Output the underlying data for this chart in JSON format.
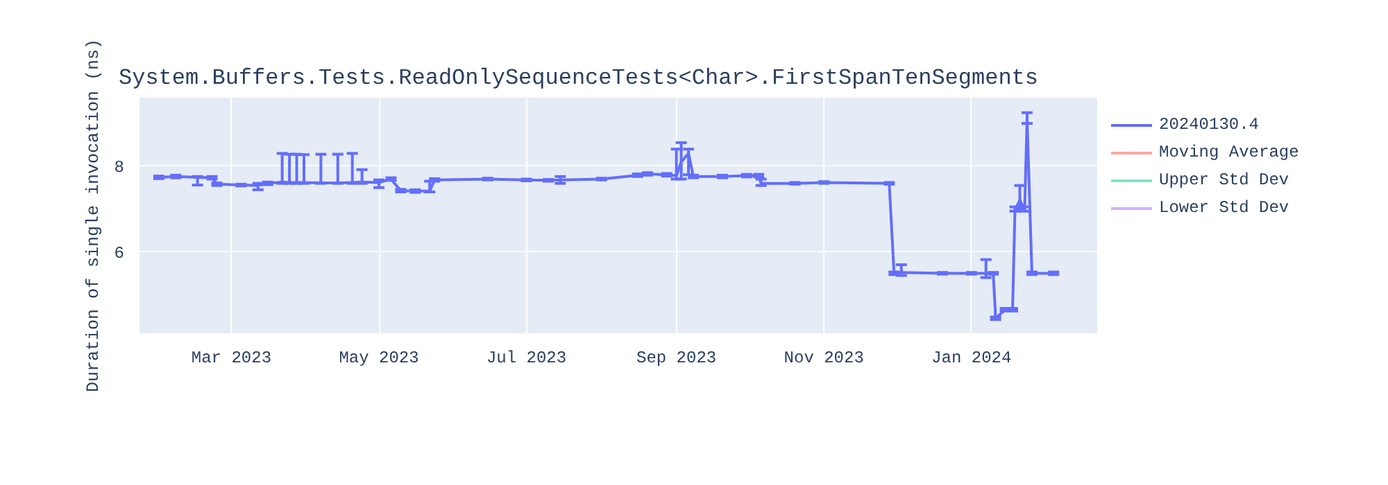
{
  "chart_data": {
    "type": "line",
    "title": "System.Buffers.Tests.ReadOnlySequenceTests<Char>.FirstSpanTenSegments",
    "ylabel": "Duration of single invocation (ns)",
    "x": [
      "2023-01-30",
      "2023-02-06",
      "2023-02-15",
      "2023-02-21",
      "2023-02-23",
      "2023-03-05",
      "2023-03-12",
      "2023-03-16",
      "2023-03-22",
      "2023-03-25",
      "2023-03-28",
      "2023-03-31",
      "2023-04-07",
      "2023-04-14",
      "2023-04-20",
      "2023-04-24",
      "2023-05-01",
      "2023-05-06",
      "2023-05-10",
      "2023-05-16",
      "2023-05-22",
      "2023-05-24",
      "2023-06-15",
      "2023-07-01",
      "2023-07-10",
      "2023-07-15",
      "2023-08-01",
      "2023-08-16",
      "2023-08-20",
      "2023-08-28",
      "2023-09-01",
      "2023-09-03",
      "2023-09-06",
      "2023-09-08",
      "2023-09-20",
      "2023-09-30",
      "2023-10-05",
      "2023-10-06",
      "2023-10-20",
      "2023-11-01",
      "2023-11-28",
      "2023-11-30",
      "2023-12-03",
      "2023-12-20",
      "2024-01-01",
      "2024-01-07",
      "2024-01-10",
      "2024-01-11",
      "2024-01-15",
      "2024-01-18",
      "2024-01-19",
      "2024-01-21",
      "2024-01-23",
      "2024-01-24",
      "2024-01-26",
      "2024-02-04"
    ],
    "series": [
      {
        "name": "20240130.4",
        "color": "#636efa",
        "values": [
          7.74,
          7.76,
          7.74,
          7.73,
          7.58,
          7.56,
          7.55,
          7.6,
          7.63,
          7.62,
          7.62,
          7.62,
          7.61,
          7.61,
          7.62,
          7.63,
          7.62,
          7.7,
          7.43,
          7.42,
          7.42,
          7.68,
          7.7,
          7.68,
          7.67,
          7.68,
          7.7,
          7.79,
          7.82,
          7.8,
          7.78,
          8.1,
          8.3,
          7.76,
          7.76,
          7.78,
          7.78,
          7.6,
          7.6,
          7.62,
          7.6,
          5.5,
          5.52,
          5.5,
          5.5,
          5.5,
          5.5,
          4.45,
          4.65,
          4.65,
          7.0,
          7.2,
          7.0,
          9.1,
          5.5,
          5.5
        ],
        "errors": [
          0.03,
          0.03,
          [
            7.56,
            7.76
          ],
          0.03,
          0.03,
          0.02,
          [
            7.45,
            7.6
          ],
          0.03,
          [
            7.6,
            8.3
          ],
          [
            7.6,
            8.28
          ],
          [
            7.6,
            8.28
          ],
          [
            7.6,
            8.27
          ],
          [
            7.6,
            8.28
          ],
          [
            7.6,
            8.28
          ],
          [
            7.6,
            8.3
          ],
          [
            7.6,
            7.92
          ],
          [
            7.5,
            7.68
          ],
          0.03,
          0.03,
          0.03,
          [
            7.4,
            7.65
          ],
          0.03,
          0.02,
          0.02,
          0.02,
          [
            7.6,
            7.76
          ],
          0.02,
          0.03,
          0.03,
          0.03,
          [
            7.7,
            8.4
          ],
          [
            7.7,
            8.55
          ],
          [
            7.8,
            8.4
          ],
          0.03,
          0.03,
          0.03,
          0.03,
          [
            7.55,
            7.7
          ],
          0.02,
          0.02,
          0.02,
          0.03,
          [
            5.45,
            5.7
          ],
          0.02,
          0.02,
          [
            5.4,
            5.82
          ],
          0.02,
          0.03,
          0.03,
          0.03,
          0.05,
          [
            7.0,
            7.55
          ],
          0.05,
          [
            9.0,
            9.25
          ],
          0.03,
          0.03
        ]
      },
      {
        "name": "Moving Average",
        "color": "#ef553b",
        "values": [
          null,
          null,
          null,
          null,
          null,
          null,
          null,
          null,
          null,
          null,
          null,
          null,
          null,
          null,
          null,
          null,
          null,
          null,
          null,
          null,
          null,
          null,
          null,
          null,
          null,
          null,
          null,
          null,
          null,
          null,
          null,
          null,
          null,
          null,
          null,
          null,
          null,
          null,
          null,
          null,
          null,
          null,
          null,
          null,
          null,
          null,
          null,
          null,
          null,
          null,
          null,
          null,
          null,
          null,
          null,
          null
        ]
      },
      {
        "name": "Upper Std Dev",
        "color": "#00cc96",
        "values": [
          null,
          null,
          null,
          null,
          null,
          null,
          null,
          null,
          null,
          null,
          null,
          null,
          null,
          null,
          null,
          null,
          null,
          null,
          null,
          null,
          null,
          null,
          null,
          null,
          null,
          null,
          null,
          null,
          null,
          null,
          null,
          null,
          null,
          null,
          null,
          null,
          null,
          null,
          null,
          null,
          null,
          null,
          null,
          null,
          null,
          null,
          null,
          null,
          null,
          null,
          null,
          null,
          null,
          null,
          null,
          null
        ]
      },
      {
        "name": "Lower Std Dev",
        "color": "#ab63fa",
        "values": [
          null,
          null,
          null,
          null,
          null,
          null,
          null,
          null,
          null,
          null,
          null,
          null,
          null,
          null,
          null,
          null,
          null,
          null,
          null,
          null,
          null,
          null,
          null,
          null,
          null,
          null,
          null,
          null,
          null,
          null,
          null,
          null,
          null,
          null,
          null,
          null,
          null,
          null,
          null,
          null,
          null,
          null,
          null,
          null,
          null,
          null,
          null,
          null,
          null,
          null,
          null,
          null,
          null,
          null,
          null,
          null
        ]
      }
    ],
    "xlim": [
      "2023-01-22",
      "2024-02-22"
    ],
    "xticks": [
      {
        "value": "2023-03-01",
        "label": "Mar 2023"
      },
      {
        "value": "2023-05-01",
        "label": "May 2023"
      },
      {
        "value": "2023-07-01",
        "label": "Jul 2023"
      },
      {
        "value": "2023-09-01",
        "label": "Sep 2023"
      },
      {
        "value": "2023-11-01",
        "label": "Nov 2023"
      },
      {
        "value": "2024-01-01",
        "label": "Jan 2024"
      }
    ],
    "ylim": [
      4.1,
      9.6
    ],
    "yticks": [
      6,
      8
    ],
    "grid": true,
    "legend": "top right"
  }
}
